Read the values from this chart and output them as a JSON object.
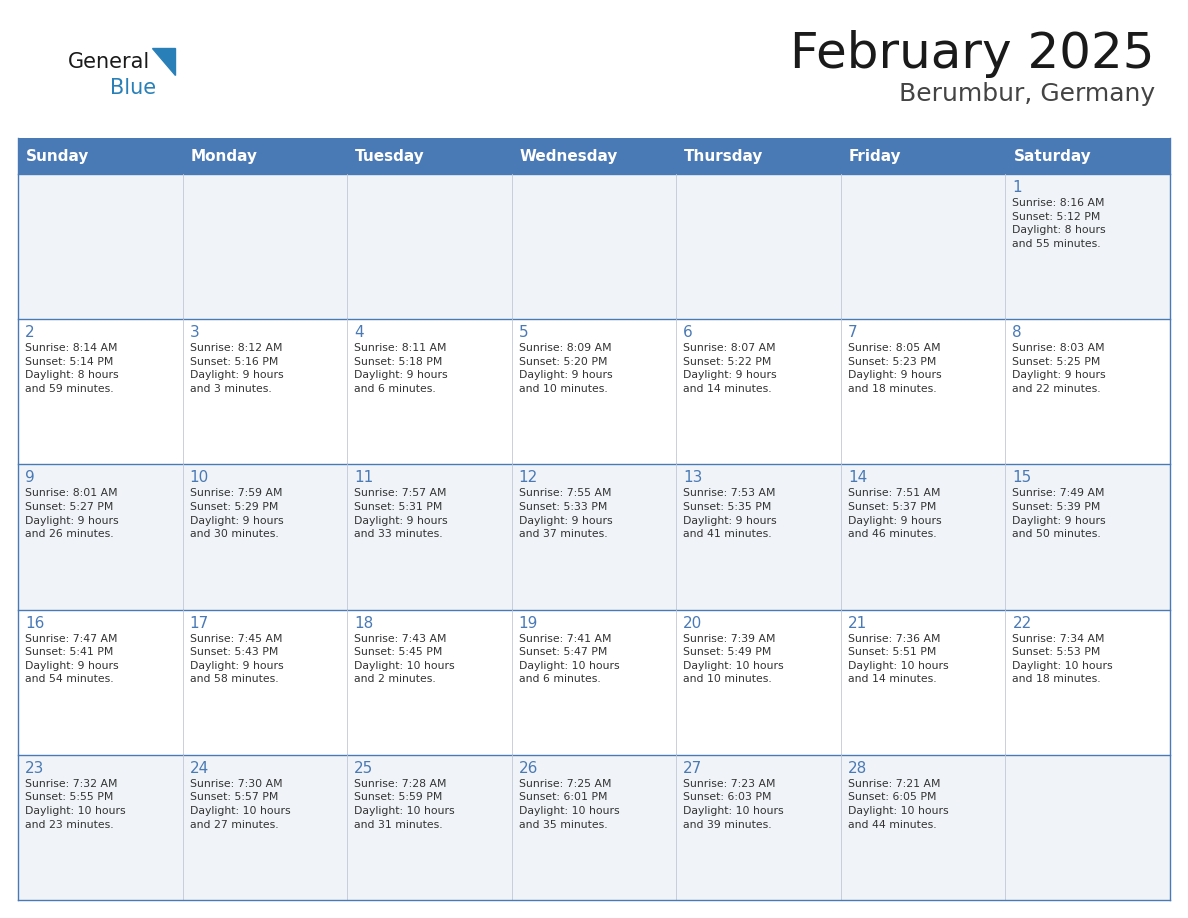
{
  "title": "February 2025",
  "subtitle": "Berumbur, Germany",
  "header_bg": "#4a7ab5",
  "header_text": "#ffffff",
  "header_days": [
    "Sunday",
    "Monday",
    "Tuesday",
    "Wednesday",
    "Thursday",
    "Friday",
    "Saturday"
  ],
  "row_bg_odd": "#f0f4f8",
  "row_bg_even": "#ffffff",
  "cell_border": "#4a7ab5",
  "day_number_color": "#4a7ab5",
  "info_text_color": "#333333",
  "title_color": "#1a1a1a",
  "subtitle_color": "#444444",
  "logo_general_color": "#1a1a1a",
  "logo_blue_color": "#2980b9",
  "weeks": [
    [
      {
        "day": null,
        "info": ""
      },
      {
        "day": null,
        "info": ""
      },
      {
        "day": null,
        "info": ""
      },
      {
        "day": null,
        "info": ""
      },
      {
        "day": null,
        "info": ""
      },
      {
        "day": null,
        "info": ""
      },
      {
        "day": 1,
        "info": "Sunrise: 8:16 AM\nSunset: 5:12 PM\nDaylight: 8 hours\nand 55 minutes."
      }
    ],
    [
      {
        "day": 2,
        "info": "Sunrise: 8:14 AM\nSunset: 5:14 PM\nDaylight: 8 hours\nand 59 minutes."
      },
      {
        "day": 3,
        "info": "Sunrise: 8:12 AM\nSunset: 5:16 PM\nDaylight: 9 hours\nand 3 minutes."
      },
      {
        "day": 4,
        "info": "Sunrise: 8:11 AM\nSunset: 5:18 PM\nDaylight: 9 hours\nand 6 minutes."
      },
      {
        "day": 5,
        "info": "Sunrise: 8:09 AM\nSunset: 5:20 PM\nDaylight: 9 hours\nand 10 minutes."
      },
      {
        "day": 6,
        "info": "Sunrise: 8:07 AM\nSunset: 5:22 PM\nDaylight: 9 hours\nand 14 minutes."
      },
      {
        "day": 7,
        "info": "Sunrise: 8:05 AM\nSunset: 5:23 PM\nDaylight: 9 hours\nand 18 minutes."
      },
      {
        "day": 8,
        "info": "Sunrise: 8:03 AM\nSunset: 5:25 PM\nDaylight: 9 hours\nand 22 minutes."
      }
    ],
    [
      {
        "day": 9,
        "info": "Sunrise: 8:01 AM\nSunset: 5:27 PM\nDaylight: 9 hours\nand 26 minutes."
      },
      {
        "day": 10,
        "info": "Sunrise: 7:59 AM\nSunset: 5:29 PM\nDaylight: 9 hours\nand 30 minutes."
      },
      {
        "day": 11,
        "info": "Sunrise: 7:57 AM\nSunset: 5:31 PM\nDaylight: 9 hours\nand 33 minutes."
      },
      {
        "day": 12,
        "info": "Sunrise: 7:55 AM\nSunset: 5:33 PM\nDaylight: 9 hours\nand 37 minutes."
      },
      {
        "day": 13,
        "info": "Sunrise: 7:53 AM\nSunset: 5:35 PM\nDaylight: 9 hours\nand 41 minutes."
      },
      {
        "day": 14,
        "info": "Sunrise: 7:51 AM\nSunset: 5:37 PM\nDaylight: 9 hours\nand 46 minutes."
      },
      {
        "day": 15,
        "info": "Sunrise: 7:49 AM\nSunset: 5:39 PM\nDaylight: 9 hours\nand 50 minutes."
      }
    ],
    [
      {
        "day": 16,
        "info": "Sunrise: 7:47 AM\nSunset: 5:41 PM\nDaylight: 9 hours\nand 54 minutes."
      },
      {
        "day": 17,
        "info": "Sunrise: 7:45 AM\nSunset: 5:43 PM\nDaylight: 9 hours\nand 58 minutes."
      },
      {
        "day": 18,
        "info": "Sunrise: 7:43 AM\nSunset: 5:45 PM\nDaylight: 10 hours\nand 2 minutes."
      },
      {
        "day": 19,
        "info": "Sunrise: 7:41 AM\nSunset: 5:47 PM\nDaylight: 10 hours\nand 6 minutes."
      },
      {
        "day": 20,
        "info": "Sunrise: 7:39 AM\nSunset: 5:49 PM\nDaylight: 10 hours\nand 10 minutes."
      },
      {
        "day": 21,
        "info": "Sunrise: 7:36 AM\nSunset: 5:51 PM\nDaylight: 10 hours\nand 14 minutes."
      },
      {
        "day": 22,
        "info": "Sunrise: 7:34 AM\nSunset: 5:53 PM\nDaylight: 10 hours\nand 18 minutes."
      }
    ],
    [
      {
        "day": 23,
        "info": "Sunrise: 7:32 AM\nSunset: 5:55 PM\nDaylight: 10 hours\nand 23 minutes."
      },
      {
        "day": 24,
        "info": "Sunrise: 7:30 AM\nSunset: 5:57 PM\nDaylight: 10 hours\nand 27 minutes."
      },
      {
        "day": 25,
        "info": "Sunrise: 7:28 AM\nSunset: 5:59 PM\nDaylight: 10 hours\nand 31 minutes."
      },
      {
        "day": 26,
        "info": "Sunrise: 7:25 AM\nSunset: 6:01 PM\nDaylight: 10 hours\nand 35 minutes."
      },
      {
        "day": 27,
        "info": "Sunrise: 7:23 AM\nSunset: 6:03 PM\nDaylight: 10 hours\nand 39 minutes."
      },
      {
        "day": 28,
        "info": "Sunrise: 7:21 AM\nSunset: 6:05 PM\nDaylight: 10 hours\nand 44 minutes."
      },
      {
        "day": null,
        "info": ""
      }
    ]
  ]
}
